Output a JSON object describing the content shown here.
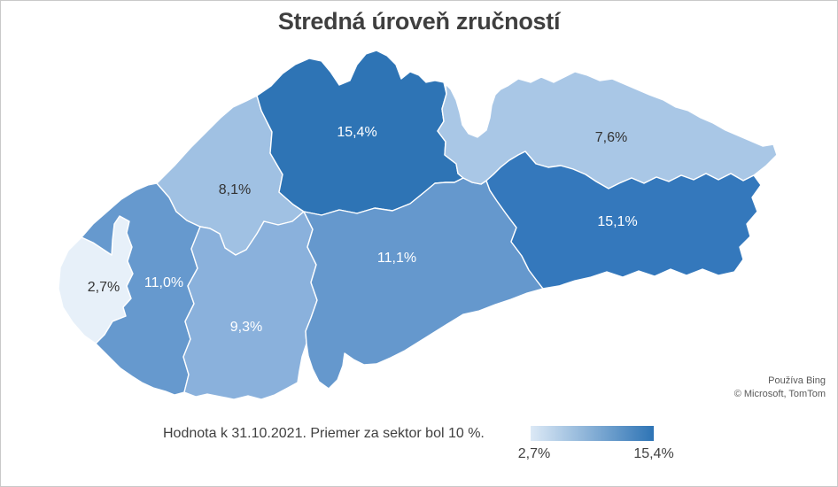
{
  "title": "Stredná úroveň zručností",
  "chart_data": {
    "type": "heatmap",
    "subtype": "choropleth-map",
    "title": "Stredná úroveň zručností",
    "unit": "%",
    "caption": "Hodnota k 31.10.2021. Priemer za sektor bol 10 %.",
    "regions": [
      {
        "id": "r1",
        "value": 2.7,
        "label": "2,7%",
        "color": "#e7f0f9",
        "label_style": "dark"
      },
      {
        "id": "r2",
        "value": 11.0,
        "label": "11,0%",
        "color": "#6699ce",
        "label_style": "light"
      },
      {
        "id": "r3",
        "value": 8.1,
        "label": "8,1%",
        "color": "#a0c1e3",
        "label_style": "dark"
      },
      {
        "id": "r4",
        "value": 15.4,
        "label": "15,4%",
        "color": "#2e74b5",
        "label_style": "light"
      },
      {
        "id": "r5",
        "value": 9.3,
        "label": "9,3%",
        "color": "#8ab1dc",
        "label_style": "light"
      },
      {
        "id": "r6",
        "value": 11.1,
        "label": "11,1%",
        "color": "#6598cd",
        "label_style": "light"
      },
      {
        "id": "r7",
        "value": 7.6,
        "label": "7,6%",
        "color": "#a9c7e6",
        "label_style": "dark"
      },
      {
        "id": "r8",
        "value": 15.1,
        "label": "15,1%",
        "color": "#3478bc",
        "label_style": "light"
      }
    ],
    "legend": {
      "min_label": "2,7%",
      "max_label": "15,4%",
      "gradient_start": "#dce9f6",
      "gradient_end": "#2e74b5",
      "position": "bottom-right"
    }
  },
  "attribution": {
    "line1": "Používa Bing",
    "line2": "© Microsoft, TomTom"
  },
  "colors": {
    "title_text": "#3f3f3f",
    "label_dark": "#333333",
    "label_light": "#ffffff",
    "canvas_border": "#c9c9c9"
  }
}
